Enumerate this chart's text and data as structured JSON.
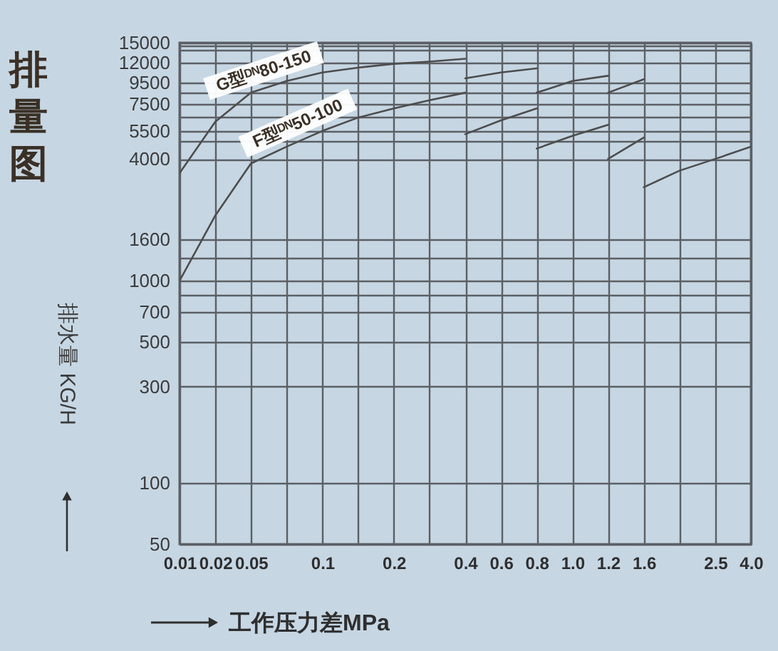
{
  "chart_data": {
    "type": "line",
    "title": "排量图",
    "xlabel": "工作压力差MPa",
    "ylabel": "排水量 KG/H",
    "categories": [
      "0.01",
      "0.02",
      "0.05",
      null,
      "0.1",
      null,
      "0.2",
      null,
      "0.4",
      "0.6",
      "0.8",
      "1.0",
      "1.2",
      "1.6",
      null,
      "2.5",
      "4.0"
    ],
    "log": "y",
    "ylim": [
      50,
      15000
    ],
    "yticks": [
      50,
      100,
      300,
      500,
      700,
      {
        "value": 850,
        "label": null
      },
      1000,
      {
        "value": 1300,
        "label": null
      },
      1600,
      4000,
      {
        "value": 4900,
        "label": null
      },
      5500,
      {
        "value": 6500,
        "label": null
      },
      7500,
      {
        "value": 8500,
        "label": null
      },
      9500,
      12000,
      {
        "value": 13800,
        "label": null
      },
      {
        "value": 14500,
        "label": null
      },
      15000
    ],
    "grid": true,
    "legend": false,
    "marker": "none",
    "line_style": "solid",
    "series": [
      {
        "name": "G型ᴰᴺ80-150",
        "color": "#4d4d4d",
        "values": [
          3400,
          6100,
          8500,
          9700,
          10700,
          11300,
          11800,
          12100,
          12500,
          null,
          null,
          null,
          null,
          null,
          null,
          null,
          null
        ]
      },
      {
        "color": "#4d4d4d",
        "values": [
          null,
          null,
          null,
          null,
          null,
          null,
          null,
          null,
          10000,
          10700,
          11200,
          null,
          null,
          null,
          null,
          null,
          null
        ]
      },
      {
        "color": "#4d4d4d",
        "values": [
          null,
          null,
          null,
          null,
          null,
          null,
          null,
          null,
          null,
          null,
          8500,
          9700,
          10300,
          null,
          null,
          null,
          null
        ]
      },
      {
        "color": "#4d4d4d",
        "values": [
          null,
          null,
          null,
          null,
          null,
          null,
          null,
          null,
          null,
          null,
          null,
          null,
          8500,
          9900,
          null,
          null,
          null
        ]
      },
      {
        "name": "F型ᴰᴺ50-100",
        "color": "#4d4d4d",
        "values": [
          1000,
          2100,
          3800,
          4600,
          5500,
          6400,
          7100,
          7800,
          8500,
          null,
          null,
          null,
          null,
          null,
          null,
          null,
          null
        ]
      },
      {
        "color": "#4d4d4d",
        "values": [
          null,
          null,
          null,
          null,
          null,
          null,
          null,
          null,
          5300,
          6200,
          7100,
          null,
          null,
          null,
          null,
          null,
          null
        ]
      },
      {
        "color": "#4d4d4d",
        "values": [
          null,
          null,
          null,
          null,
          null,
          null,
          null,
          null,
          null,
          null,
          4500,
          5200,
          5900,
          null,
          null,
          null,
          null
        ]
      },
      {
        "color": "#4d4d4d",
        "values": [
          null,
          null,
          null,
          null,
          null,
          null,
          null,
          null,
          null,
          null,
          null,
          null,
          4000,
          5100,
          null,
          null,
          null
        ]
      },
      {
        "color": "#4d4d4d",
        "values": [
          null,
          null,
          null,
          null,
          null,
          null,
          null,
          null,
          null,
          null,
          null,
          null,
          null,
          2900,
          3500,
          4000,
          4600
        ]
      }
    ]
  }
}
